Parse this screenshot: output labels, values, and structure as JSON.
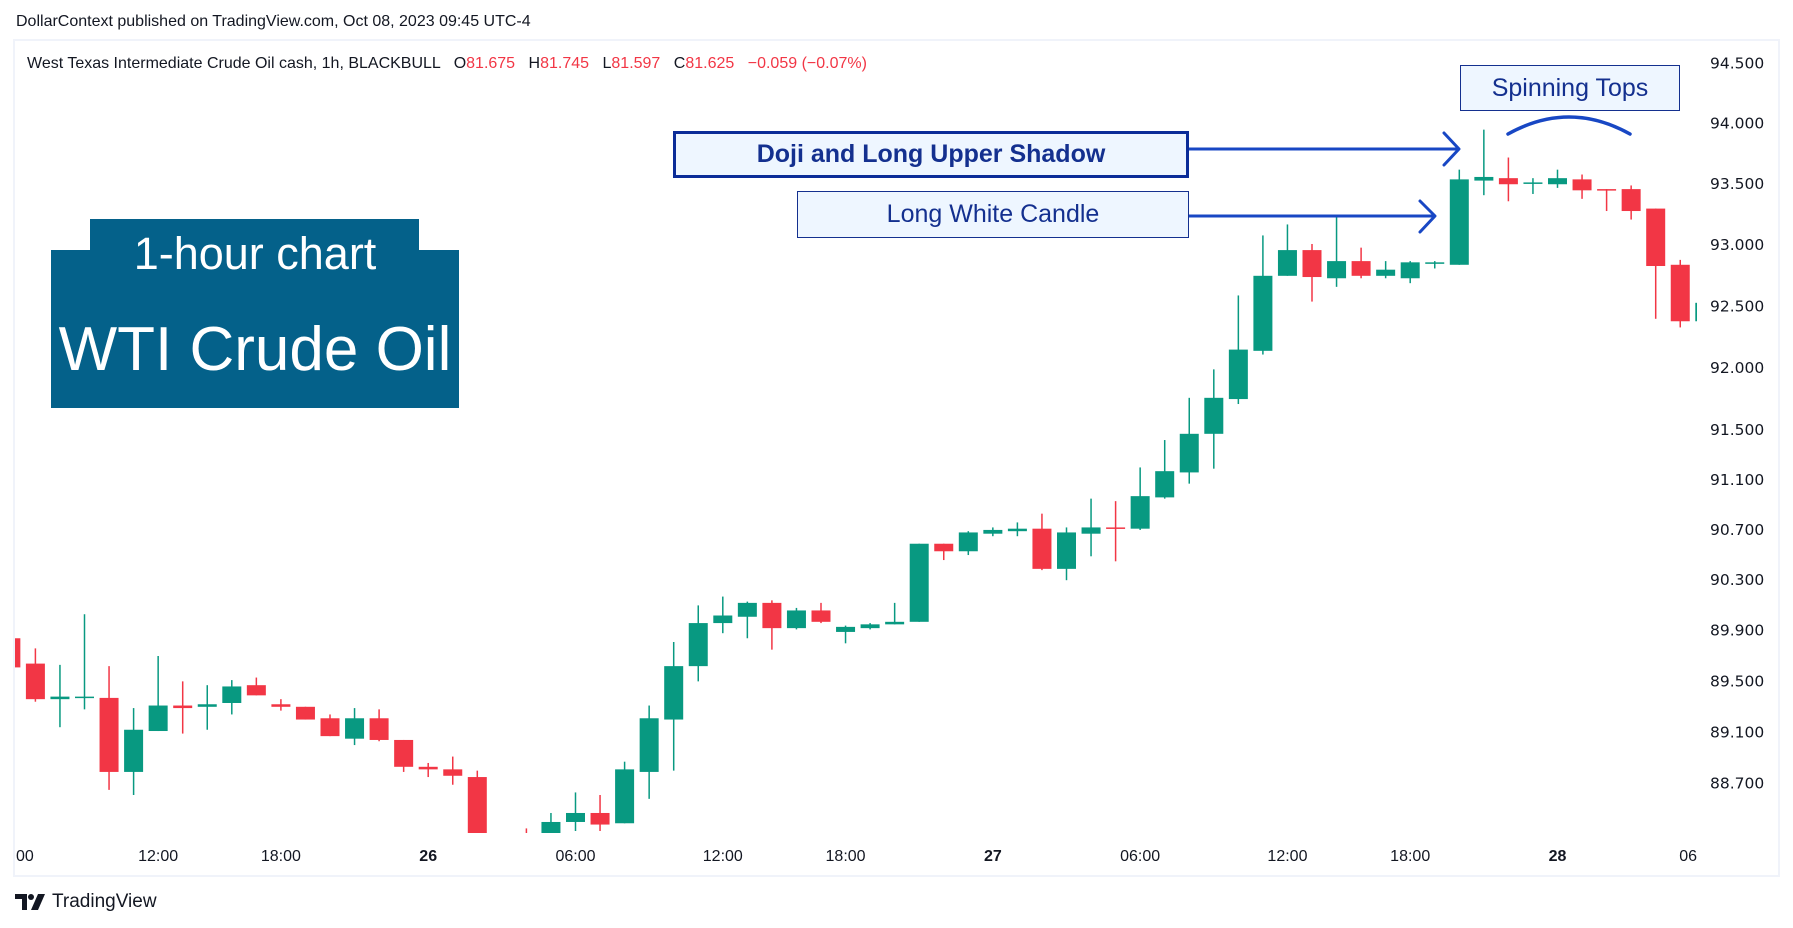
{
  "header": {
    "published": "DollarContext published on TradingView.com, Oct 08, 2023 09:45 UTC-4"
  },
  "legend": {
    "symbol": "West Texas Intermediate Crude Oil cash, 1h, BLACKBULL",
    "o_label": "O",
    "o": "81.675",
    "h_label": "H",
    "h": "81.745",
    "l_label": "L",
    "l": "81.597",
    "c_label": "C",
    "c": "81.625",
    "change": "−0.059 (−0.07%)"
  },
  "title_box": {
    "line1": "1-hour chart",
    "line2": "WTI Crude Oil",
    "color": "#04618a"
  },
  "annotations": {
    "doji": "Doji and Long Upper Shadow",
    "long_white": "Long White Candle",
    "spinning_tops": "Spinning Tops",
    "color": "#1847c4"
  },
  "footer": {
    "logo_text": "TradingView"
  },
  "chart_data": {
    "type": "candlestick",
    "interval": "1h",
    "y_scale": "log",
    "ylim": [
      88.3,
      94.7
    ],
    "up_color": "#089981",
    "down_color": "#f23645",
    "grid": false,
    "y_ticks": [
      "94.500",
      "94.000",
      "93.500",
      "93.000",
      "92.500",
      "92.000",
      "91.500",
      "91.100",
      "90.700",
      "90.300",
      "89.900",
      "89.500",
      "89.100",
      "88.700"
    ],
    "x_ticks": [
      {
        "label": "00",
        "index": 0,
        "bold": false
      },
      {
        "label": "12:00",
        "index": 6,
        "bold": false
      },
      {
        "label": "18:00",
        "index": 11,
        "bold": false
      },
      {
        "label": "26",
        "index": 17,
        "bold": true
      },
      {
        "label": "06:00",
        "index": 23,
        "bold": false
      },
      {
        "label": "12:00",
        "index": 29,
        "bold": false
      },
      {
        "label": "18:00",
        "index": 34,
        "bold": false
      },
      {
        "label": "27",
        "index": 40,
        "bold": true
      },
      {
        "label": "06:00",
        "index": 46,
        "bold": false
      },
      {
        "label": "12:00",
        "index": 52,
        "bold": false
      },
      {
        "label": "18:00",
        "index": 57,
        "bold": false
      },
      {
        "label": "28",
        "index": 63,
        "bold": true
      },
      {
        "label": "06",
        "index": 69,
        "bold": false
      }
    ],
    "ohlc_fields": [
      "open",
      "high",
      "low",
      "close"
    ],
    "candles": [
      [
        89.84,
        89.84,
        89.61,
        89.61
      ],
      [
        89.64,
        89.76,
        89.34,
        89.36
      ],
      [
        89.36,
        89.63,
        89.14,
        89.38
      ],
      [
        89.37,
        90.03,
        89.28,
        89.38
      ],
      [
        89.37,
        89.62,
        88.65,
        88.79
      ],
      [
        88.79,
        89.29,
        88.61,
        89.12
      ],
      [
        89.11,
        89.7,
        89.11,
        89.31
      ],
      [
        89.31,
        89.5,
        89.09,
        89.29
      ],
      [
        89.3,
        89.47,
        89.12,
        89.32
      ],
      [
        89.33,
        89.51,
        89.24,
        89.46
      ],
      [
        89.47,
        89.53,
        89.39,
        89.39
      ],
      [
        89.32,
        89.36,
        89.27,
        89.3
      ],
      [
        89.3,
        89.3,
        89.2,
        89.2
      ],
      [
        89.21,
        89.24,
        89.07,
        89.07
      ],
      [
        89.05,
        89.29,
        89.0,
        89.21
      ],
      [
        89.21,
        89.28,
        89.03,
        89.04
      ],
      [
        89.04,
        89.04,
        88.79,
        88.83
      ],
      [
        88.83,
        88.86,
        88.75,
        88.81
      ],
      [
        88.81,
        88.91,
        88.69,
        88.76
      ],
      [
        88.75,
        88.8,
        88.15,
        88.2
      ],
      [
        88.18,
        88.26,
        88.12,
        88.22
      ],
      [
        88.28,
        88.35,
        88.2,
        88.25
      ],
      [
        88.25,
        88.47,
        88.2,
        88.4
      ],
      [
        88.4,
        88.63,
        88.33,
        88.47
      ],
      [
        88.47,
        88.61,
        88.33,
        88.38
      ],
      [
        88.39,
        88.87,
        88.39,
        88.81
      ],
      [
        88.79,
        89.31,
        88.58,
        89.21
      ],
      [
        89.2,
        89.81,
        88.8,
        89.62
      ],
      [
        89.62,
        90.1,
        89.5,
        89.96
      ],
      [
        89.96,
        90.17,
        89.88,
        90.02
      ],
      [
        90.01,
        90.13,
        89.84,
        90.12
      ],
      [
        90.12,
        90.14,
        89.75,
        89.92
      ],
      [
        89.92,
        90.08,
        89.91,
        90.06
      ],
      [
        90.06,
        90.12,
        89.96,
        89.97
      ],
      [
        89.89,
        89.94,
        89.8,
        89.93
      ],
      [
        89.92,
        89.96,
        89.91,
        89.95
      ],
      [
        89.95,
        90.12,
        89.95,
        89.97
      ],
      [
        89.97,
        90.59,
        89.97,
        90.59
      ],
      [
        90.59,
        90.59,
        90.46,
        90.53
      ],
      [
        90.53,
        90.69,
        90.5,
        90.68
      ],
      [
        90.67,
        90.72,
        90.65,
        90.7
      ],
      [
        90.69,
        90.76,
        90.65,
        90.71
      ],
      [
        90.71,
        90.83,
        90.38,
        90.39
      ],
      [
        90.39,
        90.72,
        90.3,
        90.68
      ],
      [
        90.67,
        90.95,
        90.49,
        90.72
      ],
      [
        90.72,
        90.93,
        90.45,
        90.71
      ],
      [
        90.71,
        91.2,
        90.7,
        90.97
      ],
      [
        90.96,
        91.42,
        90.95,
        91.17
      ],
      [
        91.16,
        91.76,
        91.07,
        91.47
      ],
      [
        91.47,
        91.99,
        91.19,
        91.76
      ],
      [
        91.75,
        92.59,
        91.71,
        92.15
      ],
      [
        92.14,
        93.08,
        92.11,
        92.75
      ],
      [
        92.75,
        93.17,
        92.75,
        92.96
      ],
      [
        92.96,
        93.01,
        92.54,
        92.74
      ],
      [
        92.73,
        93.24,
        92.66,
        92.87
      ],
      [
        92.87,
        92.98,
        92.73,
        92.75
      ],
      [
        92.75,
        92.87,
        92.73,
        92.8
      ],
      [
        92.73,
        92.87,
        92.69,
        92.86
      ],
      [
        92.85,
        92.87,
        92.81,
        92.86
      ],
      [
        92.84,
        93.62,
        92.84,
        93.54
      ],
      [
        93.53,
        93.95,
        93.41,
        93.56
      ],
      [
        93.55,
        93.72,
        93.36,
        93.5
      ],
      [
        93.51,
        93.55,
        93.42,
        93.515
      ],
      [
        93.5,
        93.62,
        93.47,
        93.55
      ],
      [
        93.54,
        93.58,
        93.38,
        93.45
      ],
      [
        93.46,
        93.46,
        93.28,
        93.455
      ],
      [
        93.46,
        93.49,
        93.21,
        93.28
      ],
      [
        93.3,
        93.3,
        92.4,
        92.83
      ],
      [
        92.84,
        92.88,
        92.33,
        92.38
      ],
      [
        92.38,
        92.53,
        92.38,
        92.53
      ]
    ]
  }
}
